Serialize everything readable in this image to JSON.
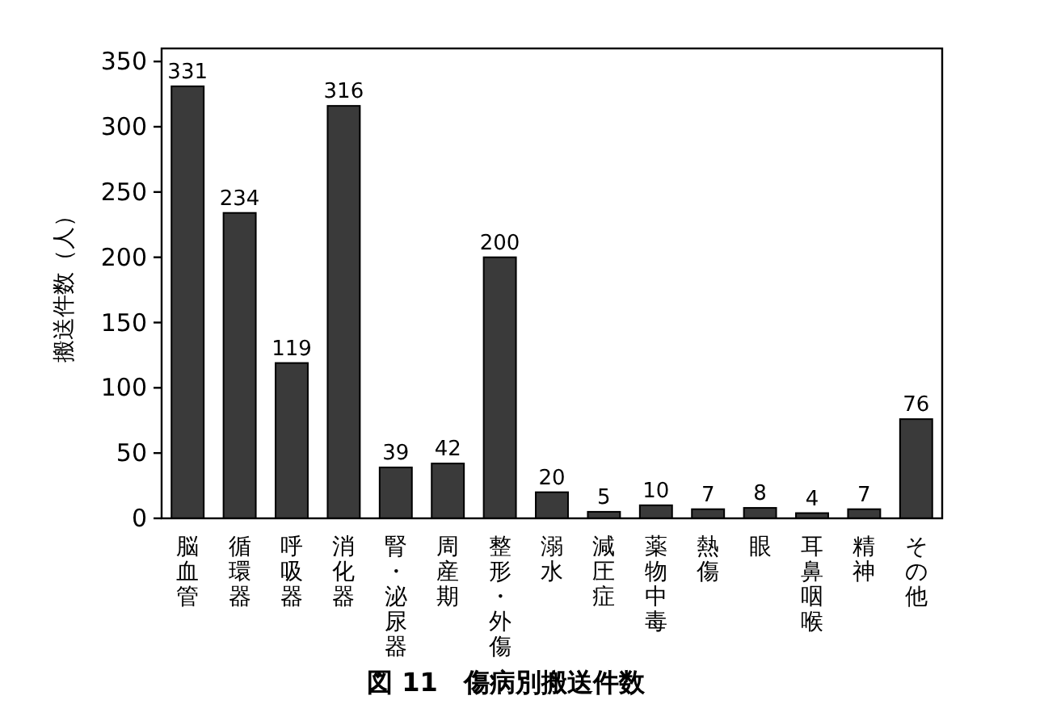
{
  "chart_data": {
    "type": "bar",
    "title": "図 11　傷病別搬送件数",
    "ylabel": "搬送件数（人）",
    "categories": [
      "脳血管",
      "循環器",
      "呼吸器",
      "消化器",
      "腎・泌尿器",
      "周産期",
      "整形・外傷",
      "溺水",
      "減圧症",
      "薬物中毒",
      "熱傷",
      "眼",
      "耳鼻咽喉",
      "精神",
      "その他"
    ],
    "values": [
      331,
      234,
      119,
      316,
      39,
      42,
      200,
      20,
      5,
      10,
      7,
      8,
      4,
      7,
      76
    ],
    "color": "#3a3a3a",
    "ylim": [
      0,
      360
    ],
    "yticks": [
      0,
      50,
      100,
      150,
      200,
      250,
      300,
      350
    ],
    "data_labels": true,
    "grid": false
  }
}
